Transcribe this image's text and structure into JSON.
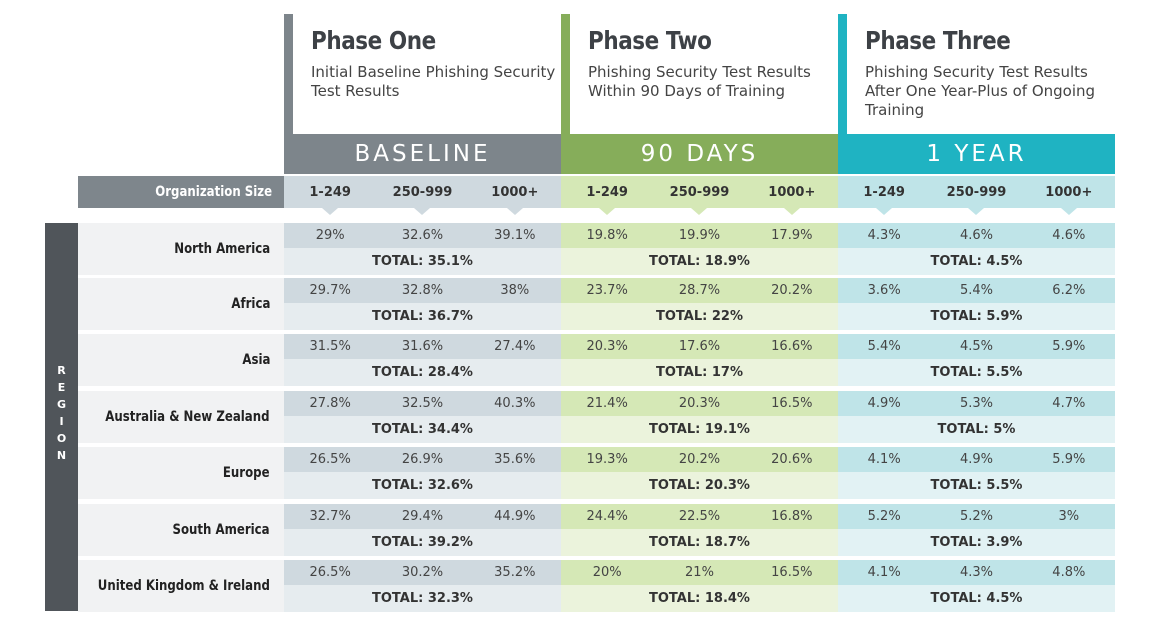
{
  "colors": {
    "baseline_dark": "#7d858b",
    "baseline_light": "#cfd9df",
    "baseline_total": "#e6ecef",
    "ninety_dark": "#86ad5a",
    "ninety_light": "#d5e8b6",
    "ninety_total": "#ebf3dc",
    "year_dark": "#1fb3c2",
    "year_light": "#bfe4e8",
    "year_total": "#e2f2f4"
  },
  "phases": [
    {
      "title": "Phase One",
      "subtitle": "Initial Baseline Phishing Security Test Results",
      "band": "BASELINE"
    },
    {
      "title": "Phase Two",
      "subtitle": "Phishing Security Test Results Within 90 Days of Training",
      "band": "90 DAYS"
    },
    {
      "title": "Phase Three",
      "subtitle": "Phishing Security Test Results After One Year-Plus of Ongoing Training",
      "band": "1 YEAR"
    }
  ],
  "org_size_label": "Organization Size",
  "sizes": [
    "1-249",
    "250-999",
    "1000+"
  ],
  "region_label": "REGION",
  "rows": [
    {
      "region": "North America",
      "phases": [
        {
          "values": [
            "29%",
            "32.6%",
            "39.1%"
          ],
          "total": "TOTAL: 35.1%"
        },
        {
          "values": [
            "19.8%",
            "19.9%",
            "17.9%"
          ],
          "total": "TOTAL: 18.9%"
        },
        {
          "values": [
            "4.3%",
            "4.6%",
            "4.6%"
          ],
          "total": "TOTAL: 4.5%"
        }
      ]
    },
    {
      "region": "Africa",
      "phases": [
        {
          "values": [
            "29.7%",
            "32.8%",
            "38%"
          ],
          "total": "TOTAL: 36.7%"
        },
        {
          "values": [
            "23.7%",
            "28.7%",
            "20.2%"
          ],
          "total": "TOTAL: 22%"
        },
        {
          "values": [
            "3.6%",
            "5.4%",
            "6.2%"
          ],
          "total": "TOTAL: 5.9%"
        }
      ]
    },
    {
      "region": "Asia",
      "phases": [
        {
          "values": [
            "31.5%",
            "31.6%",
            "27.4%"
          ],
          "total": "TOTAL: 28.4%"
        },
        {
          "values": [
            "20.3%",
            "17.6%",
            "16.6%"
          ],
          "total": "TOTAL: 17%"
        },
        {
          "values": [
            "5.4%",
            "4.5%",
            "5.9%"
          ],
          "total": "TOTAL: 5.5%"
        }
      ]
    },
    {
      "region": "Australia & New Zealand",
      "phases": [
        {
          "values": [
            "27.8%",
            "32.5%",
            "40.3%"
          ],
          "total": "TOTAL: 34.4%"
        },
        {
          "values": [
            "21.4%",
            "20.3%",
            "16.5%"
          ],
          "total": "TOTAL: 19.1%"
        },
        {
          "values": [
            "4.9%",
            "5.3%",
            "4.7%"
          ],
          "total": "TOTAL: 5%"
        }
      ]
    },
    {
      "region": "Europe",
      "phases": [
        {
          "values": [
            "26.5%",
            "26.9%",
            "35.6%"
          ],
          "total": "TOTAL: 32.6%"
        },
        {
          "values": [
            "19.3%",
            "20.2%",
            "20.6%"
          ],
          "total": "TOTAL: 20.3%"
        },
        {
          "values": [
            "4.1%",
            "4.9%",
            "5.9%"
          ],
          "total": "TOTAL: 5.5%"
        }
      ]
    },
    {
      "region": "South America",
      "phases": [
        {
          "values": [
            "32.7%",
            "29.4%",
            "44.9%"
          ],
          "total": "TOTAL: 39.2%"
        },
        {
          "values": [
            "24.4%",
            "22.5%",
            "16.8%"
          ],
          "total": "TOTAL: 18.7%"
        },
        {
          "values": [
            "5.2%",
            "5.2%",
            "3%"
          ],
          "total": "TOTAL: 3.9%"
        }
      ]
    },
    {
      "region": "United Kingdom & Ireland",
      "phases": [
        {
          "values": [
            "26.5%",
            "30.2%",
            "35.2%"
          ],
          "total": "TOTAL: 32.3%"
        },
        {
          "values": [
            "20%",
            "21%",
            "16.5%"
          ],
          "total": "TOTAL: 18.4%"
        },
        {
          "values": [
            "4.1%",
            "4.3%",
            "4.8%"
          ],
          "total": "TOTAL: 4.5%"
        }
      ]
    }
  ]
}
